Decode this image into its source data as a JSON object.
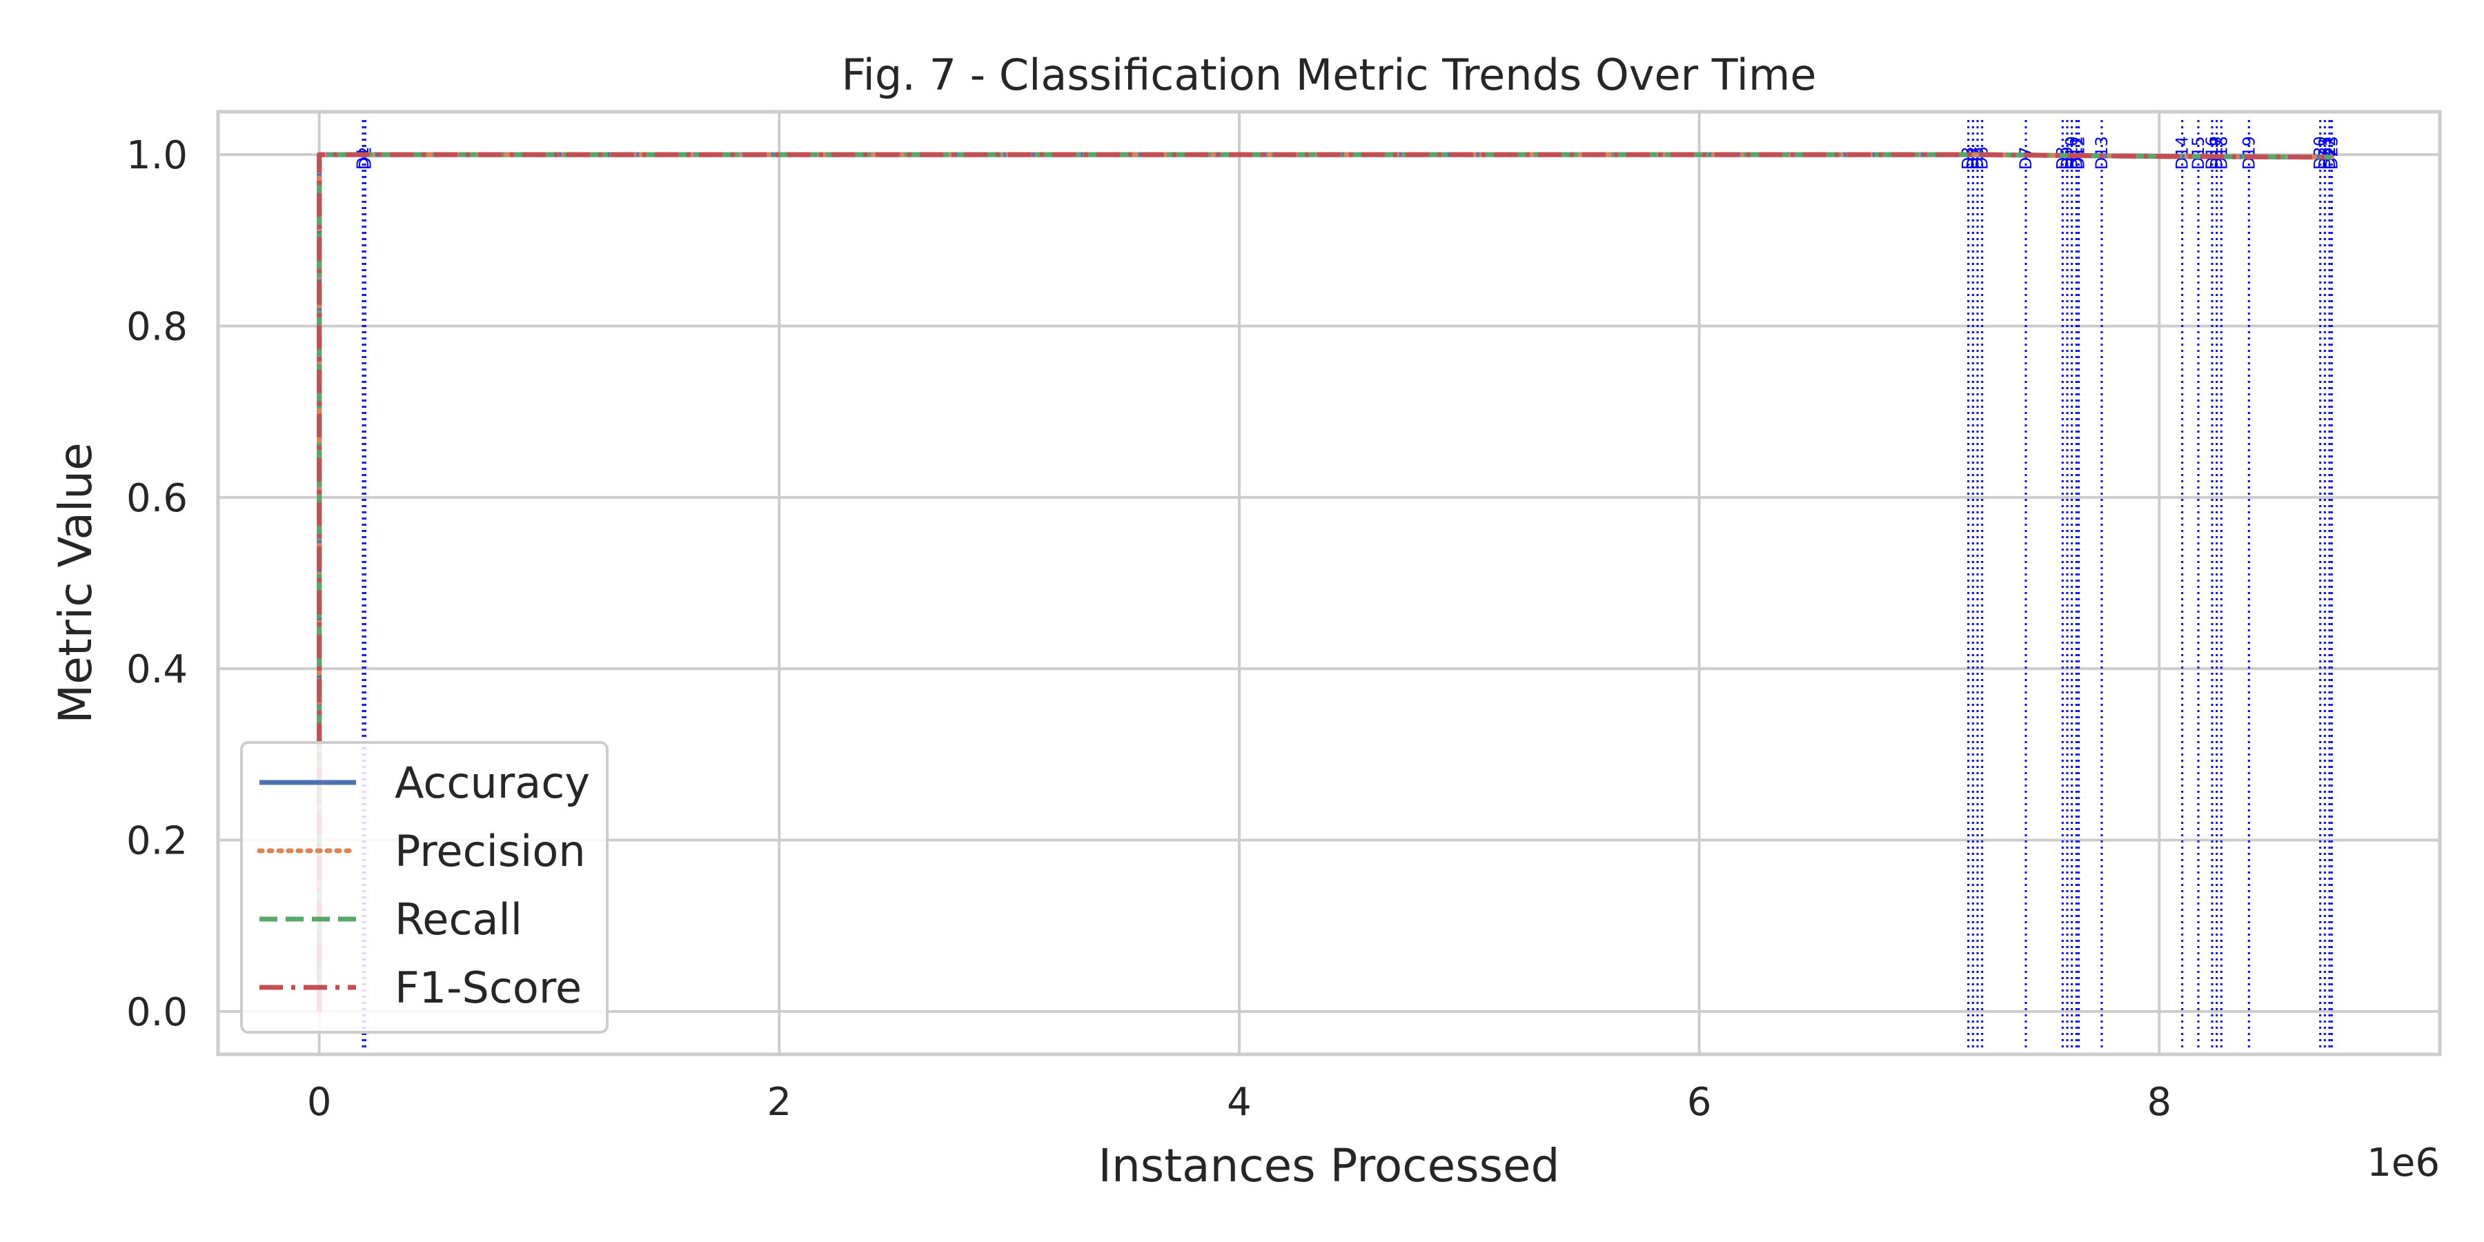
{
  "chart_data": {
    "type": "line",
    "title": "Fig. 7 - Classification Metric Trends Over Time",
    "xlabel": "Instances Processed",
    "ylabel": "Metric Value",
    "x_offset_label": "1e6",
    "xlim": [
      -0.44,
      9.22
    ],
    "ylim": [
      -0.05,
      1.05
    ],
    "x_ticks": [
      0,
      2,
      4,
      6,
      8
    ],
    "x_tick_labels": [
      "0",
      "2",
      "4",
      "6",
      "8"
    ],
    "y_ticks": [
      0.0,
      0.2,
      0.4,
      0.6,
      0.8,
      1.0
    ],
    "y_tick_labels": [
      "0.0",
      "0.2",
      "0.4",
      "0.6",
      "0.8",
      "1.0"
    ],
    "grid": true,
    "legend_position": "lower-left",
    "series": [
      {
        "name": "Accuracy",
        "color": "#4c72b0",
        "style": "solid",
        "x": [
          0,
          0.0001,
          0.2,
          7.2,
          8.0,
          8.75
        ],
        "y": [
          0.0,
          1.0,
          1.0,
          1.0,
          0.998,
          0.997
        ]
      },
      {
        "name": "Precision",
        "color": "#dd8452",
        "style": "dotted",
        "x": [
          0,
          0.0001,
          0.2,
          7.2,
          8.0,
          8.75
        ],
        "y": [
          0.0,
          1.0,
          1.0,
          1.0,
          0.998,
          0.997
        ]
      },
      {
        "name": "Recall",
        "color": "#55a868",
        "style": "dashed",
        "x": [
          0,
          0.0001,
          0.2,
          7.2,
          8.0,
          8.75
        ],
        "y": [
          0.0,
          1.0,
          1.0,
          1.0,
          0.998,
          0.997
        ]
      },
      {
        "name": "F1-Score",
        "color": "#c44e52",
        "style": "dashdot",
        "x": [
          0,
          0.0001,
          0.2,
          7.2,
          8.0,
          8.75
        ],
        "y": [
          0.0,
          1.0,
          1.0,
          1.0,
          0.998,
          0.997
        ]
      }
    ],
    "drift_markers": {
      "color": "#0000ff",
      "points": [
        {
          "label": "D1",
          "x": 0.19
        },
        {
          "label": "D2",
          "x": 0.2
        },
        {
          "label": "D3",
          "x": 7.17
        },
        {
          "label": "D4",
          "x": 7.19
        },
        {
          "label": "D5",
          "x": 7.21
        },
        {
          "label": "D6",
          "x": 7.23
        },
        {
          "label": "D7",
          "x": 7.42
        },
        {
          "label": "D8",
          "x": 7.58
        },
        {
          "label": "D9",
          "x": 7.6
        },
        {
          "label": "D10",
          "x": 7.62
        },
        {
          "label": "D11",
          "x": 7.64
        },
        {
          "label": "D12",
          "x": 7.65
        },
        {
          "label": "D13",
          "x": 7.75
        },
        {
          "label": "D14",
          "x": 8.1
        },
        {
          "label": "D15",
          "x": 8.17
        },
        {
          "label": "D16",
          "x": 8.23
        },
        {
          "label": "D17",
          "x": 8.25
        },
        {
          "label": "D18",
          "x": 8.27
        },
        {
          "label": "D19",
          "x": 8.39
        },
        {
          "label": "D20",
          "x": 8.7
        },
        {
          "label": "D21",
          "x": 8.72
        },
        {
          "label": "D22",
          "x": 8.74
        },
        {
          "label": "D23",
          "x": 8.75
        }
      ]
    }
  }
}
